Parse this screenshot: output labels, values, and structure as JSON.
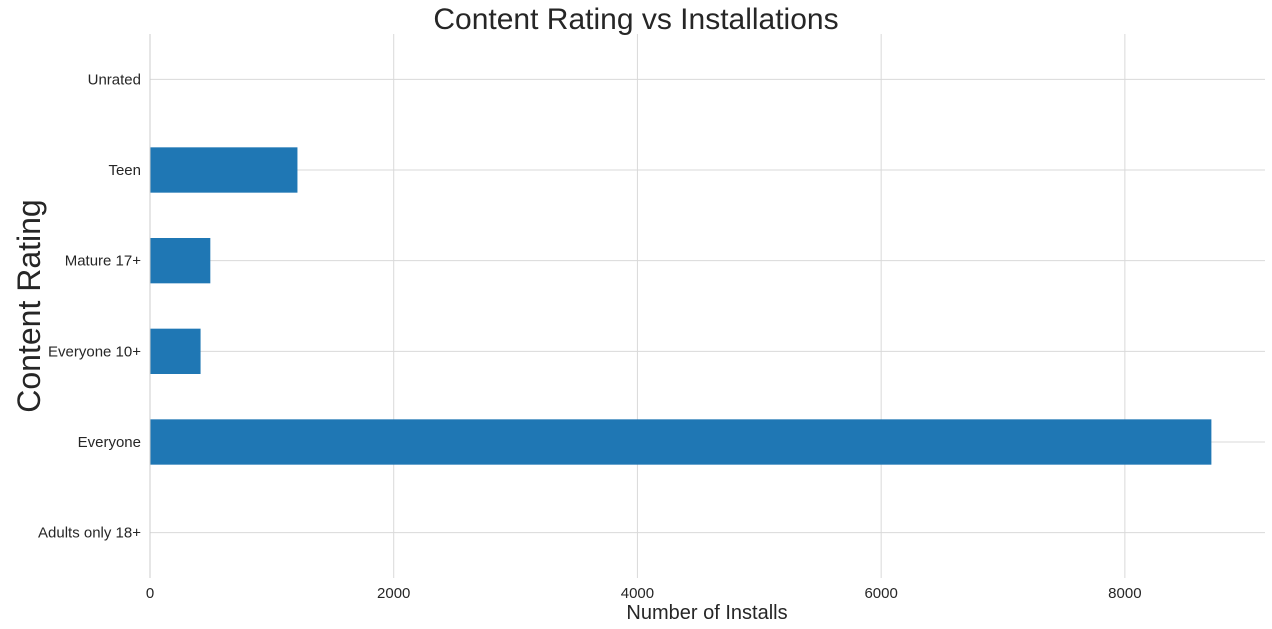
{
  "chart_data": {
    "type": "bar",
    "orientation": "horizontal",
    "title": "Content Rating vs Installations",
    "xlabel": "Number of Installs",
    "ylabel": "Content Rating",
    "categories": [
      "Adults only 18+",
      "Everyone",
      "Everyone 10+",
      "Mature 17+",
      "Teen",
      "Unrated"
    ],
    "values": [
      0,
      8710,
      415,
      495,
      1210,
      0
    ],
    "xlim": [
      0,
      9150
    ],
    "xticks": [
      0,
      2000,
      4000,
      6000,
      8000
    ],
    "grid": true,
    "bar_color": "#1f77b4"
  }
}
